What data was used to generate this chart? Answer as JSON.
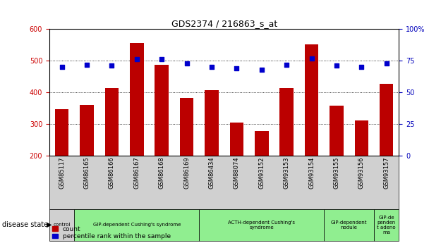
{
  "title": "GDS2374 / 216863_s_at",
  "samples": [
    "GSM85117",
    "GSM86165",
    "GSM86166",
    "GSM86167",
    "GSM86168",
    "GSM86169",
    "GSM86434",
    "GSM88074",
    "GSM93152",
    "GSM93153",
    "GSM93154",
    "GSM93155",
    "GSM93156",
    "GSM93157"
  ],
  "counts": [
    347,
    361,
    413,
    557,
    487,
    382,
    407,
    305,
    278,
    413,
    551,
    358,
    310,
    428
  ],
  "percentiles": [
    70,
    72,
    71,
    76,
    76,
    73,
    70,
    69,
    68,
    72,
    77,
    71,
    70,
    73
  ],
  "ylim_left": [
    200,
    600
  ],
  "ylim_right": [
    0,
    100
  ],
  "yticks_left": [
    200,
    300,
    400,
    500,
    600
  ],
  "yticks_right": [
    0,
    25,
    50,
    75,
    100
  ],
  "bar_color": "#bb0000",
  "dot_color": "#0000cc",
  "grid_dotted_values": [
    300,
    400,
    500
  ],
  "disease_groups": [
    {
      "label": "control",
      "start": 0,
      "end": 1,
      "color": "#d0d0d0"
    },
    {
      "label": "GIP-dependent Cushing's syndrome",
      "start": 1,
      "end": 6,
      "color": "#90ee90"
    },
    {
      "label": "ACTH-dependent Cushing's\nsyndrome",
      "start": 6,
      "end": 11,
      "color": "#90ee90"
    },
    {
      "label": "GIP-dependent\nnodule",
      "start": 11,
      "end": 13,
      "color": "#90ee90"
    },
    {
      "label": "GIP-de\npenden\nt adeno\nma",
      "start": 13,
      "end": 14,
      "color": "#90ee90"
    }
  ],
  "left_axis_color": "#cc0000",
  "right_axis_color": "#0000bb",
  "background_color": "#ffffff",
  "plot_bg_color": "#ffffff",
  "xtick_bg_color": "#d0d0d0"
}
